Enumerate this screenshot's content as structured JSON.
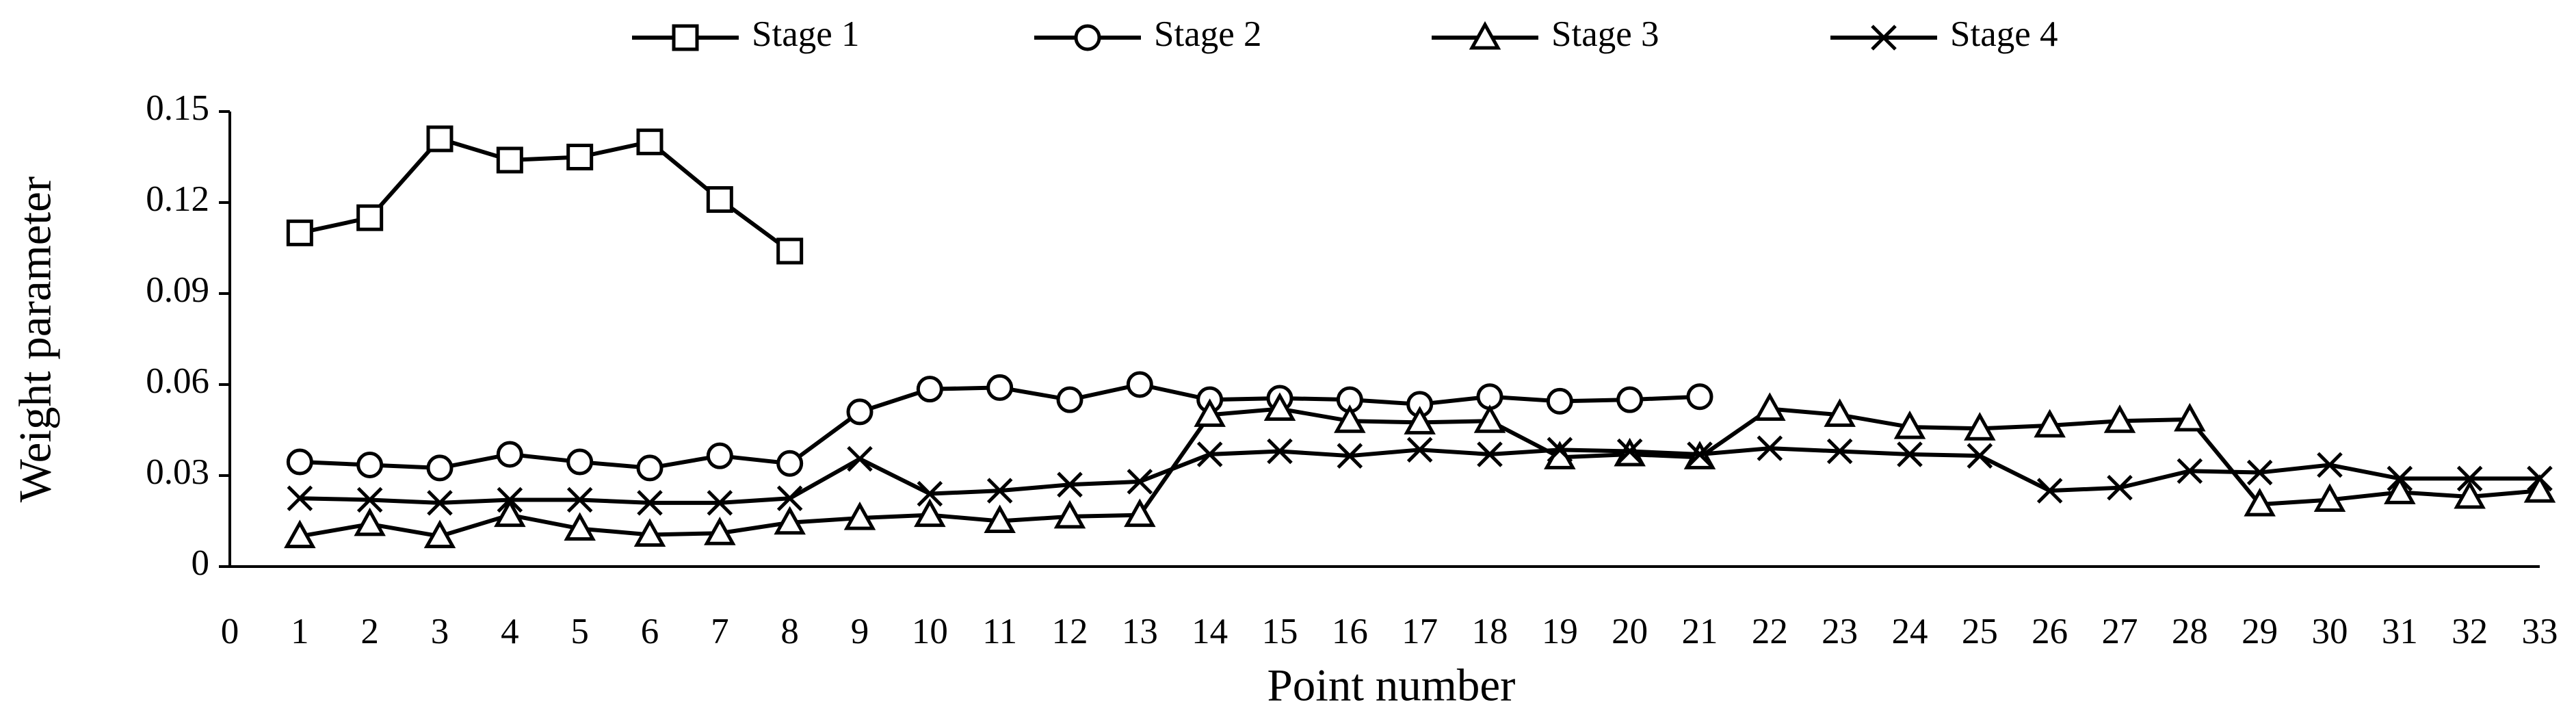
{
  "chart_data": {
    "type": "line",
    "x_label": "Point number",
    "y_label": "Weight parameter",
    "x": [
      1,
      2,
      3,
      4,
      5,
      6,
      7,
      8,
      9,
      10,
      11,
      12,
      13,
      14,
      15,
      16,
      17,
      18,
      19,
      20,
      21,
      22,
      23,
      24,
      25,
      26,
      27,
      28,
      29,
      30,
      31,
      32,
      33
    ],
    "series": [
      {
        "name": "Stage 1",
        "color": "#000000",
        "marker": "square",
        "values": [
          0.11,
          0.115,
          0.141,
          0.134,
          0.135,
          0.14,
          0.121,
          0.104,
          null,
          null,
          null,
          null,
          null,
          null,
          null,
          null,
          null,
          null,
          null,
          null,
          null,
          null,
          null,
          null,
          null,
          null,
          null,
          null,
          null,
          null,
          null,
          null,
          null
        ]
      },
      {
        "name": "Stage 2",
        "color": "#000000",
        "marker": "circle",
        "values": [
          0.0345,
          0.0335,
          0.0325,
          0.037,
          0.0345,
          0.0325,
          0.0365,
          0.034,
          0.051,
          0.0585,
          0.059,
          0.055,
          0.06,
          0.055,
          0.0555,
          0.055,
          0.0535,
          0.056,
          0.0545,
          0.055,
          0.056,
          null,
          null,
          null,
          null,
          null,
          null,
          null,
          null,
          null,
          null,
          null,
          null
        ]
      },
      {
        "name": "Stage 3",
        "color": "#000000",
        "marker": "triangle",
        "values": [
          0.01,
          0.014,
          0.01,
          0.017,
          0.0125,
          0.0105,
          0.011,
          0.0145,
          0.016,
          0.017,
          0.015,
          0.0165,
          0.017,
          0.05,
          0.052,
          0.048,
          0.0475,
          0.048,
          0.036,
          0.037,
          0.036,
          0.052,
          0.05,
          0.046,
          0.0455,
          0.0465,
          0.048,
          0.0485,
          0.0205,
          0.022,
          0.0245,
          0.023,
          0.025
        ]
      },
      {
        "name": "Stage 4",
        "color": "#000000",
        "marker": "x",
        "values": [
          0.0225,
          0.022,
          0.021,
          0.022,
          0.022,
          0.021,
          0.021,
          0.0225,
          0.0355,
          0.024,
          0.025,
          0.027,
          0.028,
          0.037,
          0.038,
          0.0365,
          0.0385,
          0.037,
          0.0385,
          0.038,
          0.037,
          0.039,
          0.038,
          0.037,
          0.0365,
          0.025,
          0.026,
          0.0315,
          0.031,
          0.0335,
          0.029,
          0.029,
          0.029
        ]
      }
    ],
    "xlim": [
      0,
      33
    ],
    "xticks": [
      0,
      1,
      2,
      3,
      4,
      5,
      6,
      7,
      8,
      9,
      10,
      11,
      12,
      13,
      14,
      15,
      16,
      17,
      18,
      19,
      20,
      21,
      22,
      23,
      24,
      25,
      26,
      27,
      28,
      29,
      30,
      31,
      32,
      33
    ],
    "ylim": [
      0,
      0.15
    ],
    "yticks": [
      0,
      0.03,
      0.06,
      0.09,
      0.12,
      0.15
    ],
    "grid": false,
    "legend": "top"
  }
}
